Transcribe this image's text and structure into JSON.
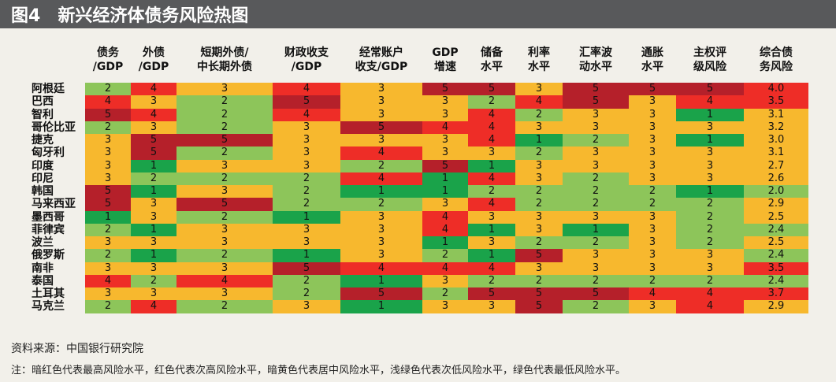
{
  "figure": {
    "label": "图4",
    "title": "新兴经济体债务风险热图"
  },
  "chart_data": {
    "type": "heatmap",
    "columns": [
      [
        "债务",
        "/GDP"
      ],
      [
        "外债",
        "/GDP"
      ],
      [
        "短期外债/",
        "中长期外债"
      ],
      [
        "财政收支",
        "/GDP"
      ],
      [
        "经常账户",
        "收支/GDP"
      ],
      [
        "GDP",
        "增速"
      ],
      [
        "储备",
        "水平"
      ],
      [
        "利率",
        "水平"
      ],
      [
        "汇率波",
        "动水平"
      ],
      [
        "通胀",
        "水平"
      ],
      [
        "主权评",
        "级风险"
      ],
      [
        "综合债",
        "务风险"
      ]
    ],
    "countries": [
      "阿根廷",
      "巴西",
      "智利",
      "哥伦比亚",
      "捷克",
      "匈牙利",
      "印度",
      "印尼",
      "韩国",
      "马来西亚",
      "墨西哥",
      "菲律宾",
      "波兰",
      "俄罗斯",
      "南非",
      "泰国",
      "土耳其",
      "马克兰"
    ],
    "values": [
      [
        "2",
        "4",
        "3",
        "4",
        "3",
        "5",
        "5",
        "3",
        "5",
        "5",
        "5",
        "4.0"
      ],
      [
        "4",
        "3",
        "2",
        "5",
        "3",
        "3",
        "2",
        "4",
        "5",
        "3",
        "4",
        "3.5"
      ],
      [
        "5",
        "4",
        "2",
        "4",
        "3",
        "3",
        "4",
        "2",
        "3",
        "3",
        "1",
        "3.1"
      ],
      [
        "2",
        "3",
        "2",
        "3",
        "5",
        "4",
        "4",
        "3",
        "3",
        "3",
        "3",
        "3.2"
      ],
      [
        "3",
        "5",
        "5",
        "3",
        "3",
        "3",
        "4",
        "1",
        "2",
        "3",
        "1",
        "3.0"
      ],
      [
        "3",
        "5",
        "2",
        "3",
        "4",
        "3",
        "3",
        "2",
        "3",
        "3",
        "3",
        "3.1"
      ],
      [
        "3",
        "1",
        "3",
        "3",
        "2",
        "5",
        "1",
        "3",
        "3",
        "3",
        "3",
        "2.7"
      ],
      [
        "3",
        "2",
        "2",
        "2",
        "4",
        "1",
        "4",
        "3",
        "2",
        "3",
        "3",
        "2.6"
      ],
      [
        "5",
        "1",
        "3",
        "2",
        "1",
        "1",
        "2",
        "2",
        "2",
        "2",
        "1",
        "2.0"
      ],
      [
        "5",
        "3",
        "5",
        "2",
        "2",
        "3",
        "4",
        "2",
        "2",
        "2",
        "2",
        "2.9"
      ],
      [
        "1",
        "3",
        "2",
        "1",
        "3",
        "4",
        "3",
        "3",
        "3",
        "3",
        "2",
        "2.5"
      ],
      [
        "2",
        "1",
        "3",
        "3",
        "3",
        "4",
        "1",
        "3",
        "1",
        "3",
        "2",
        "2.4"
      ],
      [
        "3",
        "3",
        "3",
        "3",
        "3",
        "1",
        "3",
        "2",
        "2",
        "3",
        "2",
        "2.5"
      ],
      [
        "2",
        "1",
        "2",
        "1",
        "3",
        "2",
        "1",
        "5",
        "3",
        "3",
        "3",
        "2.4"
      ],
      [
        "3",
        "3",
        "3",
        "5",
        "4",
        "4",
        "4",
        "3",
        "3",
        "3",
        "3",
        "3.5"
      ],
      [
        "4",
        "2",
        "4",
        "2",
        "1",
        "3",
        "2",
        "2",
        "2",
        "2",
        "2",
        "2.4"
      ],
      [
        "3",
        "3",
        "3",
        "2",
        "5",
        "2",
        "5",
        "5",
        "5",
        "4",
        "4",
        "3.7"
      ],
      [
        "2",
        "4",
        "2",
        "3",
        "1",
        "3",
        "3",
        "5",
        "2",
        "3",
        "4",
        "2.9"
      ]
    ],
    "colors": {
      "1": "#1aa34a",
      "2": "#8dc55a",
      "3": "#f7b82e",
      "4": "#ee2d27",
      "5": "#b5202a"
    }
  },
  "footer": {
    "source": "资料来源：中国银行研究院",
    "note": "注：暗红色代表最高风险水平，红色代表次高风险水平，暗黄色代表居中风险水平，浅绿色代表次低风险水平，绿色代表最低风险水平。"
  }
}
